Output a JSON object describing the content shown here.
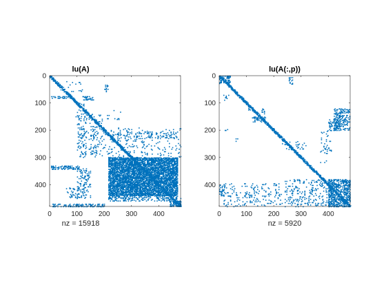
{
  "chart_data": [
    {
      "type": "spy",
      "title": "lu(A)",
      "xlabel": "nz = 15918",
      "xlim": [
        0,
        480
      ],
      "ylim": [
        0,
        480
      ],
      "y_reversed": true,
      "xticks": [
        0,
        100,
        200,
        300,
        400
      ],
      "yticks": [
        0,
        100,
        200,
        300,
        400
      ],
      "nz": 15918,
      "marker_color": "#0072BD",
      "diagonal": true,
      "regions": [
        {
          "x": [
            0,
            480
          ],
          "y": [
            0,
            480
          ],
          "density": 0.0,
          "note": "diagonal band drawn separately"
        },
        {
          "x": [
            5,
            80
          ],
          "y": [
            75,
            82
          ],
          "density": 0.35
        },
        {
          "x": [
            40,
            120
          ],
          "y": [
            20,
            60
          ],
          "density": 0.06
        },
        {
          "x": [
            95,
            200
          ],
          "y": [
            140,
            175
          ],
          "density": 0.06
        },
        {
          "x": [
            120,
            160
          ],
          "y": [
            75,
            90
          ],
          "density": 0.4
        },
        {
          "x": [
            200,
            215
          ],
          "y": [
            30,
            60
          ],
          "density": 0.3
        },
        {
          "x": [
            210,
            260
          ],
          "y": [
            120,
            170
          ],
          "density": 0.05
        },
        {
          "x": [
            100,
            135
          ],
          "y": [
            100,
            300
          ],
          "density": 0.12
        },
        {
          "x": [
            150,
            175
          ],
          "y": [
            170,
            300
          ],
          "density": 0.1
        },
        {
          "x": [
            5,
            110
          ],
          "y": [
            330,
            345
          ],
          "density": 0.4
        },
        {
          "x": [
            110,
            480
          ],
          "y": [
            190,
            300
          ],
          "density": 0.06
        },
        {
          "x": [
            230,
            470
          ],
          "y": [
            205,
            230
          ],
          "density": 0.12
        },
        {
          "x": [
            215,
            470
          ],
          "y": [
            300,
            440
          ],
          "density": 0.75
        },
        {
          "x": [
            215,
            480
          ],
          "y": [
            440,
            460
          ],
          "density": 0.3
        },
        {
          "x": [
            100,
            150
          ],
          "y": [
            340,
            450
          ],
          "density": 0.2
        },
        {
          "x": [
            10,
            200
          ],
          "y": [
            470,
            480
          ],
          "density": 0.35
        },
        {
          "x": [
            60,
            110
          ],
          "y": [
            410,
            450
          ],
          "density": 0.15
        },
        {
          "x": [
            440,
            480
          ],
          "y": [
            460,
            480
          ],
          "density": 0.6
        }
      ]
    },
    {
      "type": "spy",
      "title": "lu(A(:,p))",
      "xlabel": "nz = 5920",
      "xlim": [
        0,
        480
      ],
      "ylim": [
        0,
        480
      ],
      "y_reversed": true,
      "xticks": [
        0,
        100,
        200,
        300,
        400
      ],
      "yticks": [
        0,
        100,
        200,
        300,
        400
      ],
      "nz": 5920,
      "marker_color": "#0072BD",
      "diagonal": true,
      "regions": [
        {
          "x": [
            0,
            40
          ],
          "y": [
            0,
            30
          ],
          "density": 0.5
        },
        {
          "x": [
            120,
            165
          ],
          "y": [
            150,
            170
          ],
          "density": 0.25
        },
        {
          "x": [
            120,
            170
          ],
          "y": [
            150,
            165
          ],
          "density": 0.2
        },
        {
          "x": [
            255,
            270
          ],
          "y": [
            5,
            30
          ],
          "density": 0.3
        },
        {
          "x": [
            155,
            165
          ],
          "y": [
            120,
            140
          ],
          "density": 0.3
        },
        {
          "x": [
            15,
            35
          ],
          "y": [
            70,
            90
          ],
          "density": 0.2
        },
        {
          "x": [
            100,
            120
          ],
          "y": [
            115,
            125
          ],
          "density": 0.2
        },
        {
          "x": [
            20,
            30
          ],
          "y": [
            190,
            200
          ],
          "density": 0.3
        },
        {
          "x": [
            60,
            70
          ],
          "y": [
            230,
            250
          ],
          "density": 0.2
        },
        {
          "x": [
            420,
            480
          ],
          "y": [
            120,
            200
          ],
          "density": 0.3
        },
        {
          "x": [
            400,
            440
          ],
          "y": [
            160,
            200
          ],
          "density": 0.25
        },
        {
          "x": [
            370,
            410
          ],
          "y": [
            200,
            320
          ],
          "density": 0.08
        },
        {
          "x": [
            230,
            260
          ],
          "y": [
            230,
            270
          ],
          "density": 0.1
        },
        {
          "x": [
            280,
            320
          ],
          "y": [
            240,
            270
          ],
          "density": 0.15
        },
        {
          "x": [
            10,
            230
          ],
          "y": [
            395,
            480
          ],
          "density": 0.09
        },
        {
          "x": [
            240,
            400
          ],
          "y": [
            380,
            480
          ],
          "density": 0.12
        },
        {
          "x": [
            400,
            480
          ],
          "y": [
            380,
            480
          ],
          "density": 0.55
        },
        {
          "x": [
            0,
            20
          ],
          "y": [
            400,
            440
          ],
          "density": 0.2
        }
      ]
    }
  ]
}
